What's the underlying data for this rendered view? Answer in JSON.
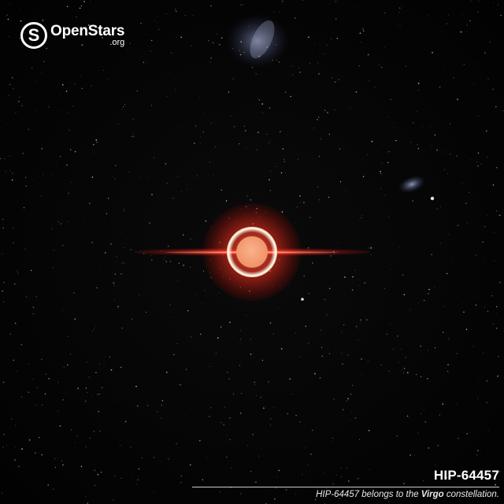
{
  "brand": {
    "badge_letter": "S",
    "name": "OpenStars",
    "suffix": ".org"
  },
  "star": {
    "name": "HIP-64457",
    "color": "#f29a6f",
    "glow_color": "#ff3a20"
  },
  "caption": {
    "title": "HIP-64457",
    "line_prefix": "HIP-64457 belongs to the",
    "constellation": "Virgo",
    "line_suffix": "constellation."
  }
}
